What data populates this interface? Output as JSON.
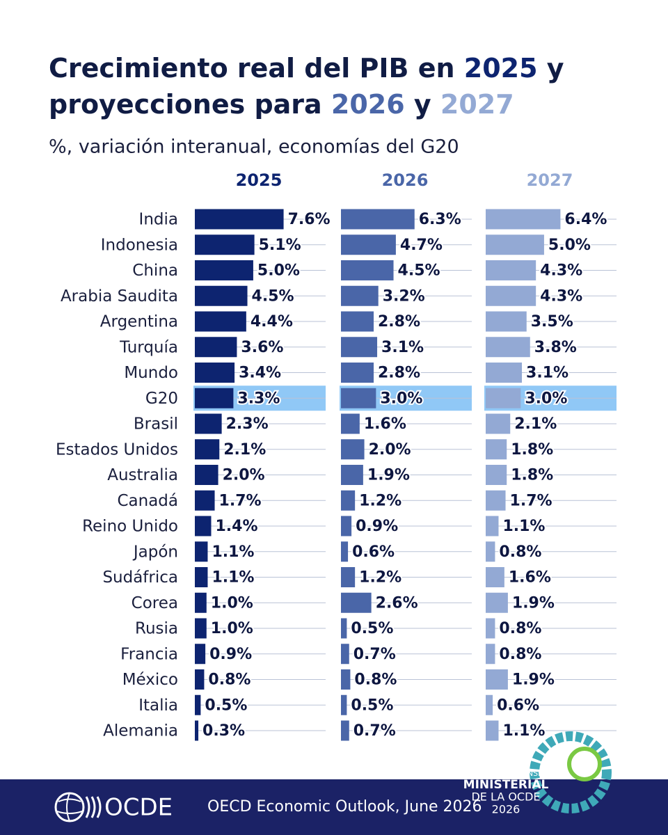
{
  "chart_data": {
    "type": "bar_panels",
    "title": [
      [
        "Crecimiento real del PIB en ",
        "2025",
        " y"
      ],
      [
        "proyecciones para ",
        "2026",
        " y ",
        "2027"
      ]
    ],
    "subtitle": "%, variación interanual, economías del G20",
    "categories": [
      "India",
      "Indonesia",
      "China",
      "Arabia Saudita",
      "Argentina",
      "Turquía",
      "Mundo",
      "G20",
      "Brasil",
      "Estados Unidos",
      "Australia",
      "Canadá",
      "Reino Unido",
      "Japón",
      "Sudáfrica",
      "Corea",
      "Rusia",
      "Francia",
      "México",
      "Italia",
      "Alemania"
    ],
    "highlight": "G20",
    "xlim": [
      0,
      11.2
    ],
    "series": [
      {
        "name": "2025",
        "color": "#0d2470",
        "values": [
          7.6,
          5.1,
          5.0,
          4.5,
          4.4,
          3.6,
          3.4,
          3.3,
          2.3,
          2.1,
          2.0,
          1.7,
          1.4,
          1.1,
          1.1,
          1.0,
          1.0,
          0.9,
          0.8,
          0.5,
          0.3
        ],
        "value_labels": [
          "7.6%",
          "5.1%",
          "5.0%",
          "4.5%",
          "4.4%",
          "3.6%",
          "3.4%",
          "3.3%",
          "2.3%",
          "2.1%",
          "2.0%",
          "1.7%",
          "1.4%",
          "1.1%",
          "1.1%",
          "1.0%",
          "1.0%",
          "0.9%",
          "0.8%",
          "0.5%",
          "0.3%"
        ]
      },
      {
        "name": "2026",
        "color": "#4a66a8",
        "values": [
          6.3,
          4.7,
          4.5,
          3.2,
          2.8,
          3.1,
          2.8,
          3.0,
          1.6,
          2.0,
          1.9,
          1.2,
          0.9,
          0.6,
          1.2,
          2.6,
          0.5,
          0.7,
          0.8,
          0.5,
          0.7
        ],
        "value_labels": [
          "6.3%",
          "4.7%",
          "4.5%",
          "3.2%",
          "2.8%",
          "3.1%",
          "2.8%",
          "3.0%",
          "1.6%",
          "2.0%",
          "1.9%",
          "1.2%",
          "0.9%",
          "0.6%",
          "1.2%",
          "2.6%",
          "0.5%",
          "0.7%",
          "0.8%",
          "0.5%",
          "0.7%"
        ]
      },
      {
        "name": "2027",
        "color": "#93a9d4",
        "values": [
          6.4,
          5.0,
          4.3,
          4.3,
          3.5,
          3.8,
          3.1,
          3.0,
          2.1,
          1.8,
          1.8,
          1.7,
          1.1,
          0.8,
          1.6,
          1.9,
          0.8,
          0.8,
          1.9,
          0.6,
          1.1
        ],
        "value_labels": [
          "6.4%",
          "5.0%",
          "4.3%",
          "4.3%",
          "3.5%",
          "3.8%",
          "3.1%",
          "3.0%",
          "2.1%",
          "1.8%",
          "1.8%",
          "1.7%",
          "1.1%",
          "0.8%",
          "1.6%",
          "1.9%",
          "0.8%",
          "0.8%",
          "1.9%",
          "0.6%",
          "1.1%"
        ]
      }
    ]
  },
  "footer": {
    "logo": "OCDE",
    "source": "OECD Economic Outlook, June 2026",
    "emblem": [
      "REUNIÓN DEL CONSEJO",
      "MINISTERIAL",
      "DE LA OCDE",
      "2026"
    ]
  }
}
